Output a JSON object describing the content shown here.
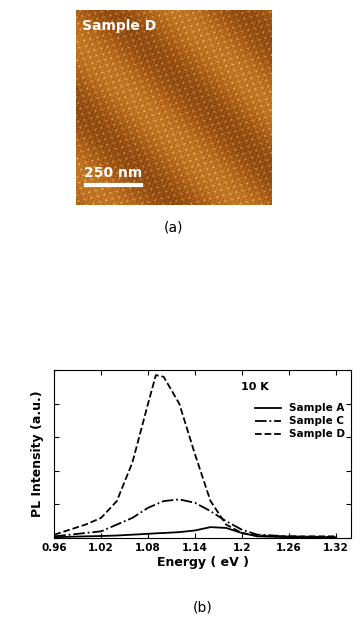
{
  "image_panel": {
    "label": "Sample D",
    "scale_bar": "250 nm",
    "caption": "(a)"
  },
  "chart_data": {
    "type": "line",
    "caption": "(b)",
    "x_label": "Energy ( eV )",
    "y_label": "PL Intensity (a.u.)",
    "annotations": [
      "10 K"
    ],
    "x": [
      0.96,
      1.0,
      1.02,
      1.04,
      1.06,
      1.08,
      1.09,
      1.1,
      1.12,
      1.14,
      1.16,
      1.18,
      1.2,
      1.22,
      1.26,
      1.32
    ],
    "series": [
      {
        "name": "Sample A",
        "color": "#000000",
        "line_style": "solid",
        "values": [
          0.005,
          0.01,
          0.012,
          0.015,
          0.02,
          0.025,
          0.028,
          0.03,
          0.035,
          0.045,
          0.065,
          0.06,
          0.03,
          0.01,
          0.005,
          0.003
        ]
      },
      {
        "name": "Sample C",
        "color": "#000000",
        "line_style": "dashdot",
        "values": [
          0.01,
          0.03,
          0.04,
          0.08,
          0.12,
          0.18,
          0.2,
          0.22,
          0.23,
          0.21,
          0.16,
          0.1,
          0.05,
          0.02,
          0.01,
          0.005
        ]
      },
      {
        "name": "Sample D",
        "color": "#000000",
        "line_style": "dashed",
        "values": [
          0.02,
          0.08,
          0.12,
          0.22,
          0.45,
          0.8,
          0.97,
          0.96,
          0.8,
          0.5,
          0.22,
          0.08,
          0.03,
          0.015,
          0.01,
          0.01
        ]
      }
    ],
    "xlim": [
      0.96,
      1.34
    ],
    "xticks": [
      0.96,
      1.02,
      1.08,
      1.14,
      1.2,
      1.26,
      1.32
    ],
    "ylim": [
      0,
      1.0
    ],
    "yticks": [
      0,
      0.2,
      0.4,
      0.6,
      0.8,
      1.0
    ],
    "tick_labels": "x",
    "legend": "upper right",
    "grid": false
  }
}
